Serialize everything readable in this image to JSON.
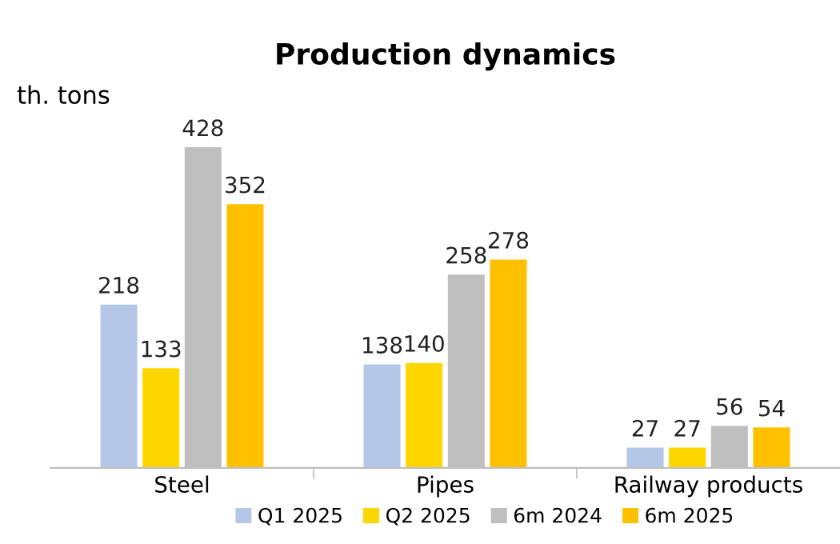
{
  "chart_data": {
    "type": "bar",
    "title": "Production dynamics",
    "ylabel": "th. tons",
    "categories": [
      "Steel",
      "Pipes",
      "Railway products"
    ],
    "series": [
      {
        "name": "Q1 2025",
        "color": "#b4c7e7",
        "values": [
          218,
          138,
          27
        ]
      },
      {
        "name": "Q2 2025",
        "color": "#ffd700",
        "values": [
          133,
          140,
          27
        ]
      },
      {
        "name": "6m 2024",
        "color": "#bfbfbf",
        "values": [
          428,
          258,
          56
        ]
      },
      {
        "name": "6m 2025",
        "color": "#ffc000",
        "values": [
          352,
          278,
          54
        ]
      }
    ],
    "data_labels": true,
    "legend": "bottom",
    "grid": false
  }
}
